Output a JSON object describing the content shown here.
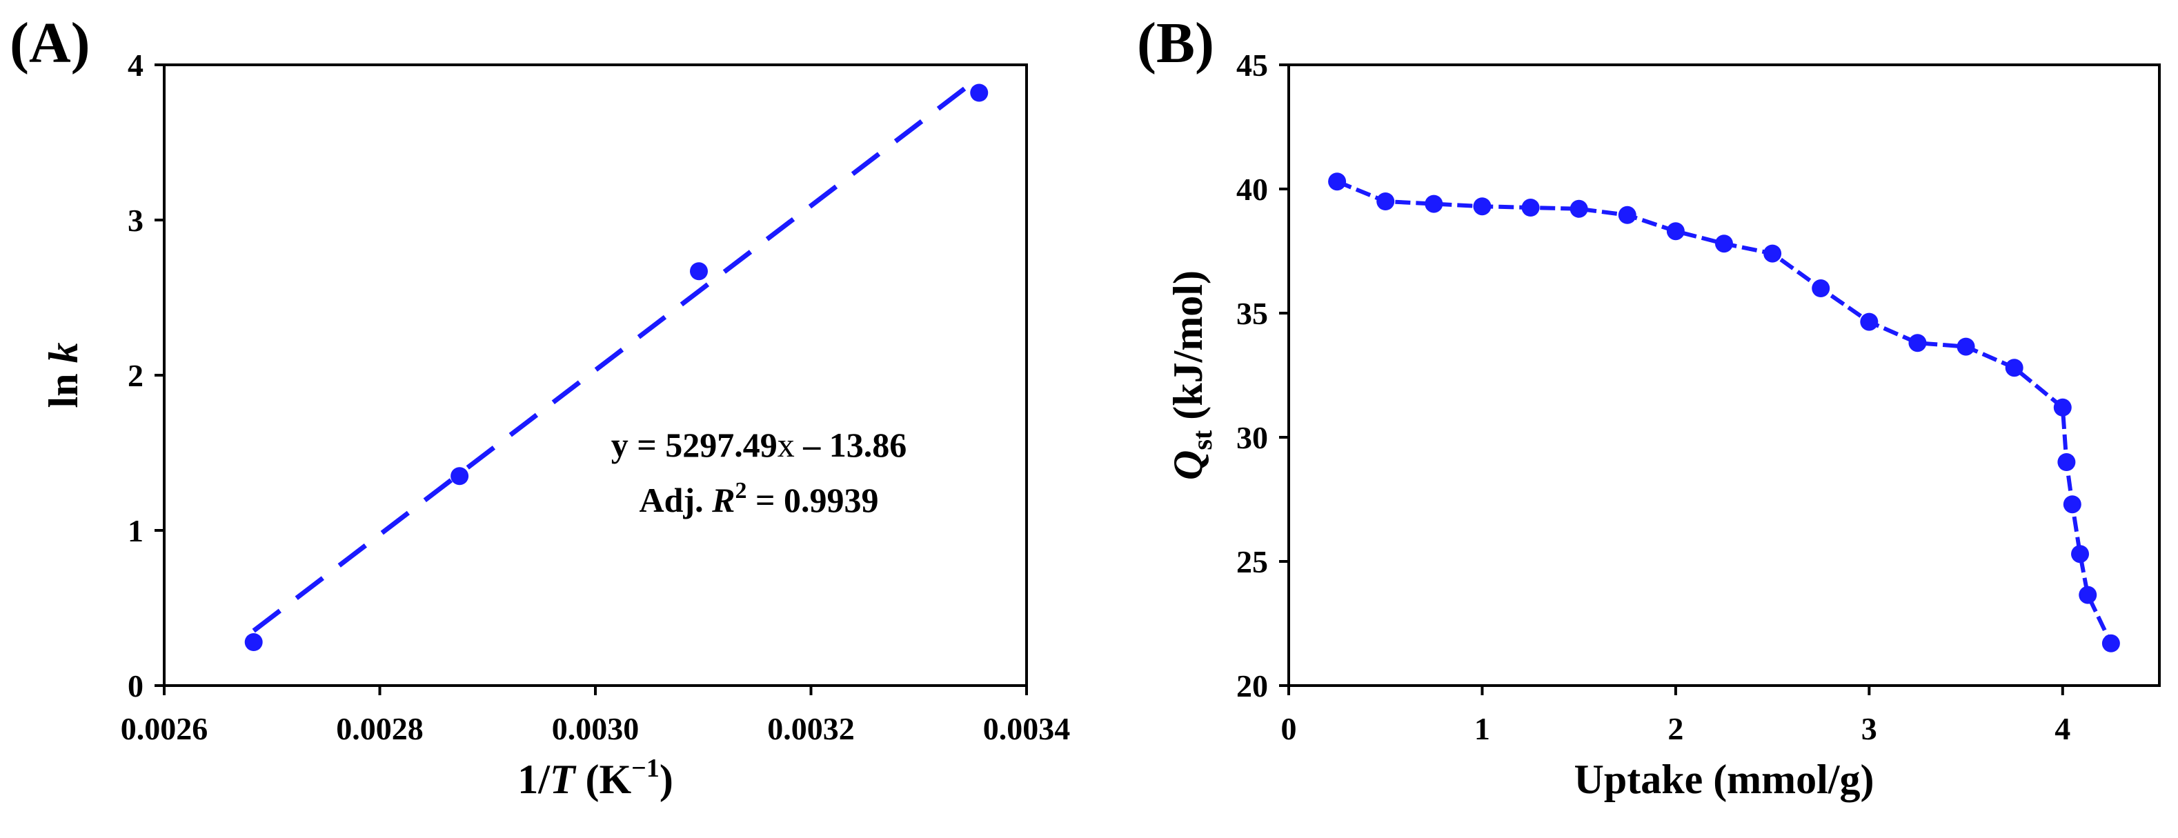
{
  "chart_data": [
    {
      "panel": "(A)",
      "type": "scatter",
      "title": "",
      "xlabel": {
        "prefix": "1/",
        "var": "T",
        "unit_open": " (K",
        "unit_sup": "−1",
        "unit_close": ")"
      },
      "ylabel": {
        "prefix": "ln ",
        "var": "k"
      },
      "xlim": [
        0.0026,
        0.0034
      ],
      "ylim": [
        0,
        4
      ],
      "xticks": [
        "0.0026",
        "0.0028",
        "0.0030",
        "0.0032",
        "0.0034"
      ],
      "yticks": [
        "0",
        "1",
        "2",
        "3",
        "4"
      ],
      "grid": false,
      "color": "#1a1aff",
      "points": {
        "x": [
          0.002683,
          0.002874,
          0.003096,
          0.003356
        ],
        "y": [
          0.28,
          1.35,
          2.67,
          3.82
        ]
      },
      "fit": {
        "slope": 5297.49,
        "intercept": -13.86,
        "x_range": [
          0.002683,
          0.003356
        ],
        "style": "dashed"
      },
      "annotation": {
        "equation": {
          "lead": "y = 5297.49",
          "xvar": "x",
          "tail": " – 13.86"
        },
        "r2": {
          "lead": "Adj. ",
          "var": "R",
          "sup": "2",
          "tail": " = 0.9939"
        }
      }
    },
    {
      "panel": "(B)",
      "type": "line",
      "title": "",
      "xlabel": {
        "text": "Uptake (mmol/g)"
      },
      "ylabel": {
        "var": "Q",
        "sub": "st",
        "unit": " (kJ/mol)"
      },
      "xlim": [
        0,
        4.5
      ],
      "ylim": [
        20,
        45
      ],
      "xticks": [
        "0",
        "1",
        "2",
        "3",
        "4"
      ],
      "yticks": [
        "20",
        "25",
        "30",
        "35",
        "40",
        "45"
      ],
      "grid": false,
      "color": "#1a1aff",
      "series": [
        {
          "name": "Qst",
          "x": [
            0.25,
            0.5,
            0.75,
            1.0,
            1.25,
            1.5,
            1.75,
            2.0,
            2.25,
            2.5,
            2.75,
            3.0,
            3.25,
            3.5,
            3.75,
            4.0,
            4.02,
            4.05,
            4.09,
            4.13,
            4.25
          ],
          "y": [
            40.3,
            39.5,
            39.4,
            39.3,
            39.25,
            39.2,
            38.95,
            38.3,
            37.8,
            37.4,
            36.0,
            34.65,
            33.8,
            33.65,
            32.8,
            31.2,
            29.0,
            27.3,
            25.3,
            23.65,
            21.7
          ]
        }
      ]
    }
  ]
}
